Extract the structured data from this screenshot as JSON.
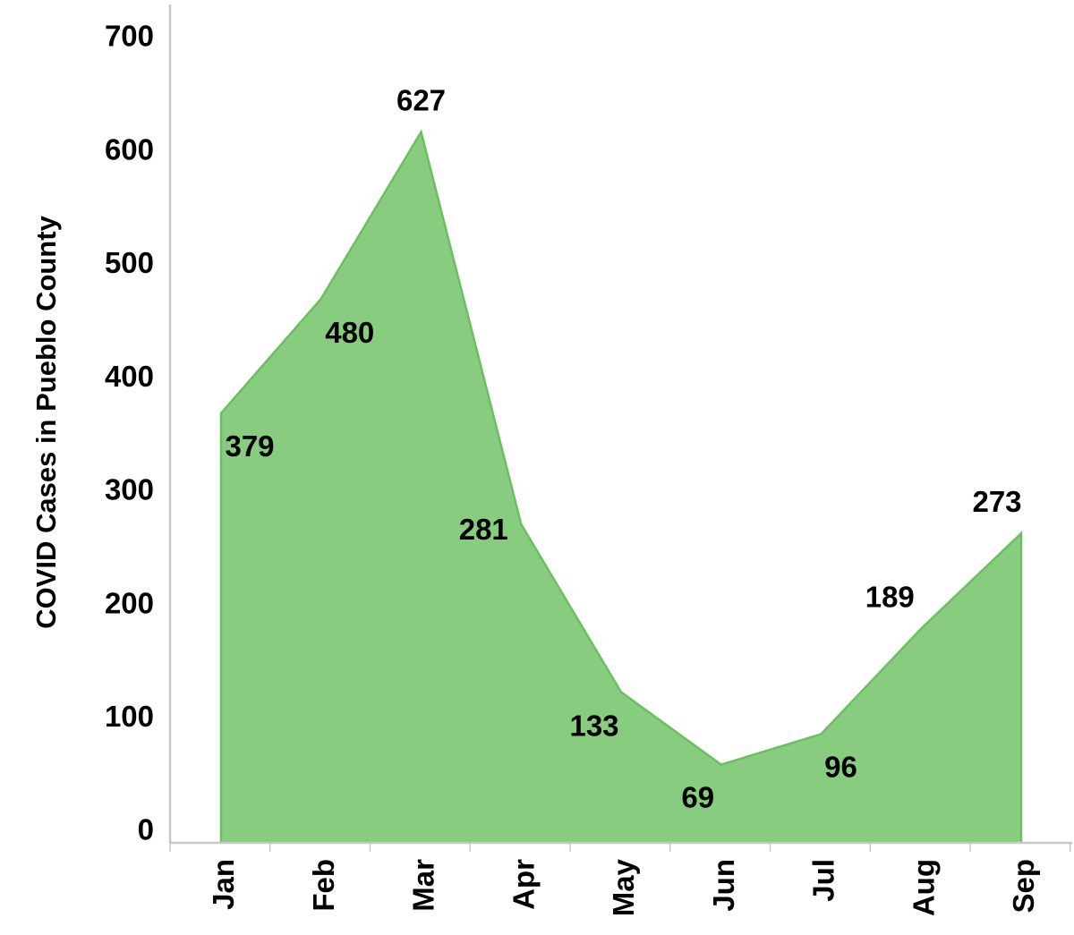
{
  "chart_data": {
    "type": "area",
    "categories": [
      "Jan",
      "Feb",
      "Mar",
      "Apr",
      "May",
      "Jun",
      "Jul",
      "Aug",
      "Sep"
    ],
    "series": [
      {
        "values": [
          379,
          480,
          627,
          281,
          133,
          69,
          96,
          189,
          273
        ]
      }
    ],
    "data_labels": [
      "379",
      "480",
      "627",
      "281",
      "133",
      "69",
      "96",
      "189",
      "273"
    ],
    "title": "",
    "xlabel": "",
    "ylabel": "COVID Cases in Pueblo County",
    "ylim": [
      0,
      700
    ],
    "yticks": [
      "0",
      "100",
      "200",
      "300",
      "400",
      "500",
      "600",
      "700"
    ],
    "grid": false,
    "legend": "none",
    "fill_color": "#88cc7f",
    "line_color": "#6cbf61"
  }
}
